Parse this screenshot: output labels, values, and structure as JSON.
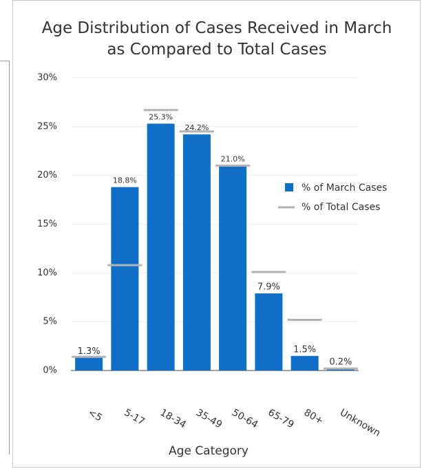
{
  "chart_data": {
    "type": "bar",
    "title": "Age Distribution of Cases Received in March as Compared to Total Cases",
    "x_label": "Age Category",
    "categories": [
      "<5",
      "5-17",
      "18-34",
      "35-49",
      "50-64",
      "65-79",
      "80+",
      "Unknown"
    ],
    "series": [
      {
        "name": "% of March Cases",
        "color": "#0f6fc6",
        "values": [
          1.3,
          18.8,
          25.3,
          24.2,
          21.0,
          7.9,
          1.5,
          0.2
        ],
        "value_labels": [
          "1.3%",
          "18.8%",
          "25.3%",
          "24.2%",
          "21.0%",
          "7.9%",
          "1.5%",
          "0.2%"
        ]
      },
      {
        "name": "% of Total Cases",
        "color": "#b3b3b3",
        "values": [
          1.4,
          10.8,
          26.7,
          24.5,
          21.0,
          10.1,
          5.2,
          0.2
        ]
      }
    ],
    "ylim": [
      0,
      30
    ],
    "yticks": [
      {
        "value": 0,
        "label": "0%"
      },
      {
        "value": 5,
        "label": "5%"
      },
      {
        "value": 10,
        "label": "10%"
      },
      {
        "value": 15,
        "label": "15%"
      },
      {
        "value": 20,
        "label": "20%"
      },
      {
        "value": 25,
        "label": "25%"
      },
      {
        "value": 30,
        "label": "30%"
      }
    ],
    "grid": true,
    "legend": "right"
  }
}
